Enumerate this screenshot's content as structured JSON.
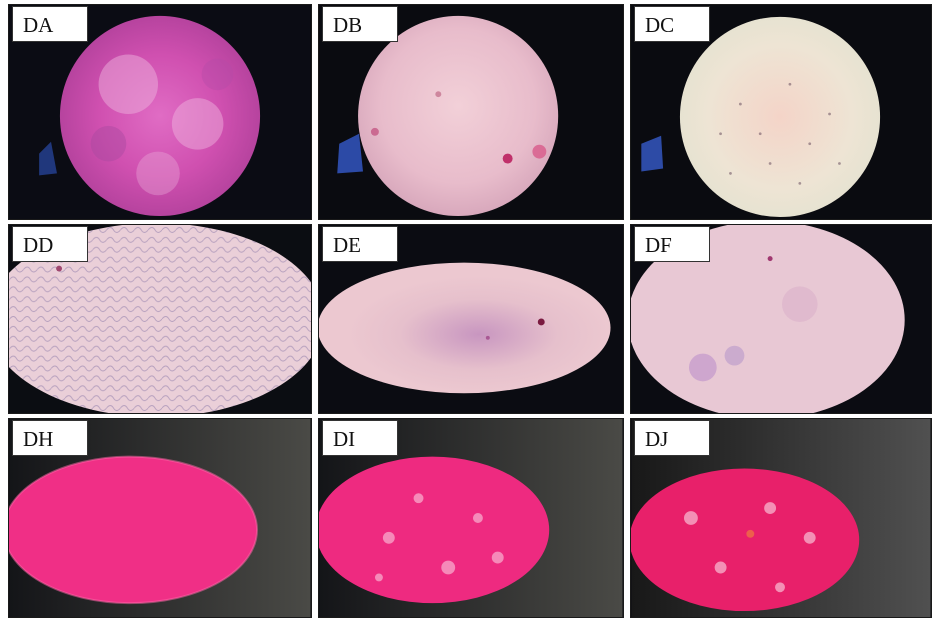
{
  "panels": [
    {
      "label": "DA"
    },
    {
      "label": "DB"
    },
    {
      "label": "DC"
    },
    {
      "label": "DD"
    },
    {
      "label": "DE"
    },
    {
      "label": "DF"
    },
    {
      "label": "DH"
    },
    {
      "label": "DI"
    },
    {
      "label": "DJ"
    }
  ],
  "colors": {
    "magenta_stain": "#d44fb0",
    "pale_pink_field": "#ebc8d2",
    "cream_field": "#f0e6da",
    "hot_pink_field": "#f0247a",
    "eyepiece_dark": "#0b0d12"
  }
}
